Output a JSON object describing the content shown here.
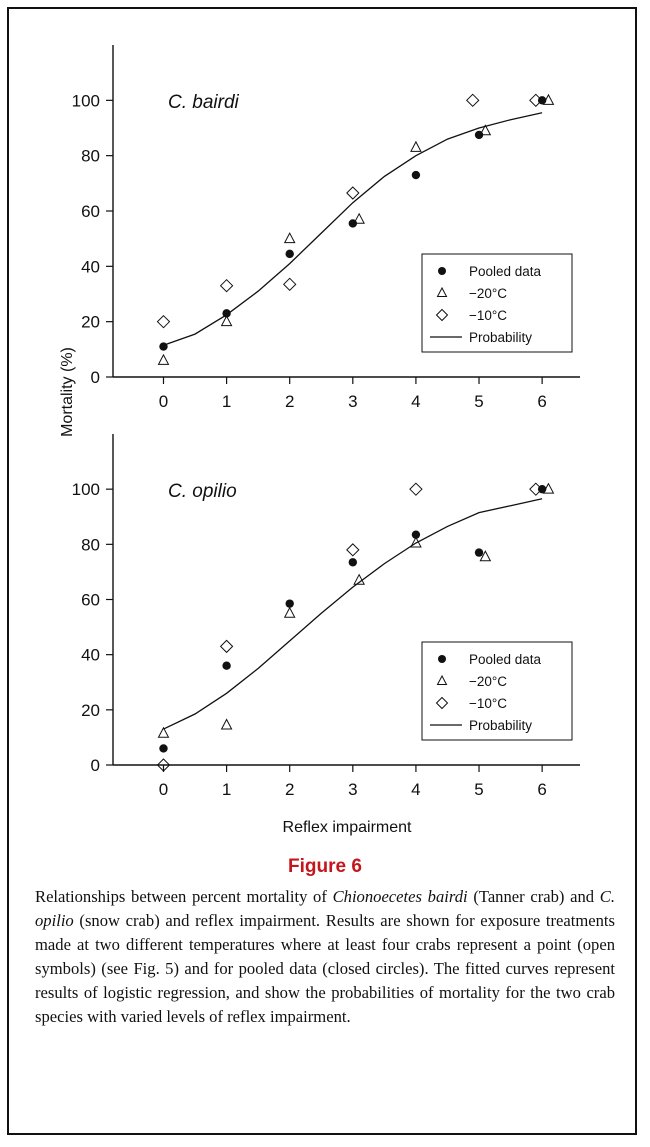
{
  "figure": {
    "title": "Figure 6",
    "caption_parts": [
      {
        "t": "Relationships between percent mortality of ",
        "i": false
      },
      {
        "t": "Chionoecetes bairdi",
        "i": true
      },
      {
        "t": " (Tanner crab) and ",
        "i": false
      },
      {
        "t": "C. opilio",
        "i": true
      },
      {
        "t": " (snow crab) and reflex impairment. Results are shown for exposure treatments made at two different temperatures where at least four crabs represent a point (open symbols) (see Fig. 5) and for pooled data (closed circles). The fitted curves represent results of logistic regression, and show the probabilities of mortality for the two crab species with varied levels of reflex impairment.",
        "i": false
      }
    ]
  },
  "colors": {
    "ink": "#111111",
    "caption_title": "#c4161c",
    "frame": "#111111"
  },
  "chart_data": [
    {
      "type": "scatter",
      "panel_label": "C. bairdi",
      "xlabel": "",
      "ylabel": "Mortality (%)",
      "xlim": [
        -0.8,
        6.6
      ],
      "ylim": [
        0,
        120
      ],
      "x_ticks": [
        0,
        1,
        2,
        3,
        4,
        5,
        6
      ],
      "y_ticks": [
        0,
        20,
        40,
        60,
        80,
        100
      ],
      "legend": {
        "placement": "bottom-right",
        "entries": [
          "Pooled data",
          "−20°C",
          "−10°C",
          "Probability"
        ]
      },
      "series": [
        {
          "name": "Pooled data",
          "marker": "filled-circle",
          "points": [
            [
              0,
              11
            ],
            [
              1,
              23
            ],
            [
              2,
              44.5
            ],
            [
              3,
              55.5
            ],
            [
              4,
              73
            ],
            [
              5,
              87.5
            ],
            [
              6,
              100
            ]
          ]
        },
        {
          "name": "−20°C",
          "marker": "open-triangle",
          "points": [
            [
              0,
              6
            ],
            [
              1,
              20
            ],
            [
              2,
              50
            ],
            [
              3.1,
              57
            ],
            [
              4,
              83
            ],
            [
              5.1,
              89
            ],
            [
              6.1,
              100
            ]
          ]
        },
        {
          "name": "−10°C",
          "marker": "open-diamond",
          "points": [
            [
              0,
              20
            ],
            [
              1,
              33
            ],
            [
              2,
              33.5
            ],
            [
              3,
              66.5
            ],
            [
              4.9,
              100
            ],
            [
              5.9,
              100
            ]
          ]
        },
        {
          "name": "Probability",
          "marker": "line",
          "points": [
            [
              0,
              11.5
            ],
            [
              0.5,
              15.5
            ],
            [
              1,
              22.5
            ],
            [
              1.5,
              31
            ],
            [
              2,
              41
            ],
            [
              2.5,
              52
            ],
            [
              3,
              63
            ],
            [
              3.5,
              72.5
            ],
            [
              4,
              80
            ],
            [
              4.5,
              86
            ],
            [
              5,
              90
            ],
            [
              5.5,
              93
            ],
            [
              6,
              95.5
            ]
          ]
        }
      ]
    },
    {
      "type": "scatter",
      "panel_label": "C. opilio",
      "xlabel": "Reflex impairment",
      "ylabel": "",
      "xlim": [
        -0.8,
        6.6
      ],
      "ylim": [
        0,
        120
      ],
      "x_ticks": [
        0,
        1,
        2,
        3,
        4,
        5,
        6
      ],
      "y_ticks": [
        0,
        20,
        40,
        60,
        80,
        100
      ],
      "legend": {
        "placement": "bottom-right",
        "entries": [
          "Pooled data",
          "−20°C",
          "−10°C",
          "Probability"
        ]
      },
      "series": [
        {
          "name": "Pooled data",
          "marker": "filled-circle",
          "points": [
            [
              0,
              6
            ],
            [
              1,
              36
            ],
            [
              2,
              58.5
            ],
            [
              3,
              73.5
            ],
            [
              4,
              83.5
            ],
            [
              5,
              77
            ],
            [
              6,
              100
            ]
          ]
        },
        {
          "name": "−20°C",
          "marker": "open-triangle",
          "points": [
            [
              0,
              11.5
            ],
            [
              1,
              14.5
            ],
            [
              2,
              55
            ],
            [
              3.1,
              67
            ],
            [
              4,
              80.5
            ],
            [
              5.1,
              75.5
            ],
            [
              6.1,
              100
            ]
          ]
        },
        {
          "name": "−10°C",
          "marker": "open-diamond",
          "points": [
            [
              0,
              0
            ],
            [
              1,
              43
            ],
            [
              3,
              78
            ],
            [
              4,
              100
            ],
            [
              5.9,
              100
            ]
          ]
        },
        {
          "name": "Probability",
          "marker": "line",
          "points": [
            [
              0,
              13
            ],
            [
              0.5,
              18.5
            ],
            [
              1,
              26
            ],
            [
              1.5,
              35
            ],
            [
              2,
              45
            ],
            [
              2.5,
              55
            ],
            [
              3,
              64.5
            ],
            [
              3.5,
              73
            ],
            [
              4,
              80.5
            ],
            [
              4.5,
              86.5
            ],
            [
              5,
              91.5
            ],
            [
              5.5,
              94
            ],
            [
              6,
              96.5
            ]
          ]
        }
      ]
    }
  ]
}
